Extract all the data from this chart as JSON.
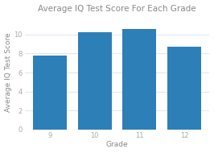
{
  "title": "Average IQ Test Score For Each Grade",
  "xlabel": "Grade",
  "ylabel": "Average IQ Test Score",
  "categories": [
    "9",
    "10",
    "11",
    "12"
  ],
  "values": [
    7.8,
    10.2,
    10.55,
    8.7
  ],
  "bar_color": "#2d7fb8",
  "ylim": [
    0,
    12
  ],
  "yticks": [
    0,
    2,
    4,
    6,
    8,
    10
  ],
  "background_color": "#ffffff",
  "plot_bg_color": "#ffffff",
  "grid_color": "#e0e8f0",
  "title_fontsize": 7.5,
  "label_fontsize": 6.5,
  "tick_fontsize": 6,
  "bar_width": 0.75,
  "title_color": "#888888",
  "label_color": "#888888",
  "tick_color": "#aaaaaa"
}
